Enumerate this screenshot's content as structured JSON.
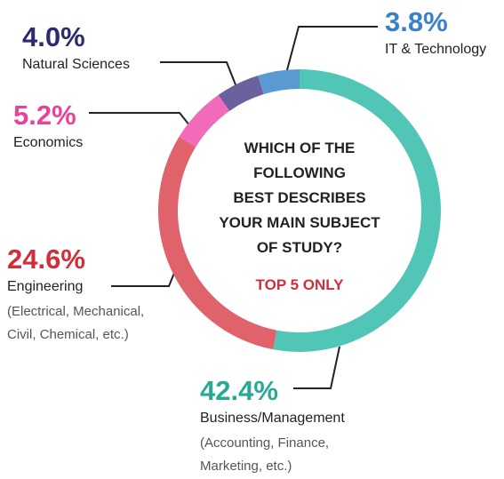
{
  "chart_data": {
    "type": "donut",
    "title": [
      "WHICH OF THE",
      "FOLLOWING",
      "BEST DESCRIBES",
      "YOUR MAIN SUBJECT",
      "OF STUDY?"
    ],
    "subtitle": "TOP 5 ONLY",
    "categories": [
      "Business/Management",
      "Engineering",
      "Economics",
      "Natural Sciences",
      "IT & Technology"
    ],
    "values": [
      42.4,
      24.6,
      5.2,
      4.0,
      3.8
    ],
    "value_labels": [
      "42.4%",
      "24.6%",
      "5.2%",
      "4.0%",
      "3.8%"
    ],
    "category_notes": [
      [
        "(Accounting, Finance,",
        "Marketing, etc.)"
      ],
      [
        "(Electrical, Mechanical,",
        "Civil, Chemical, etc.)"
      ],
      null,
      null,
      null
    ],
    "colors": [
      "#52c6b6",
      "#e0626b",
      "#f26bbb",
      "#6b619f",
      "#5a9ad3"
    ],
    "label_colors": [
      "#27a996",
      "#cf2f3a",
      "#e8439a",
      "#2d2a6d",
      "#3a80c6"
    ]
  }
}
